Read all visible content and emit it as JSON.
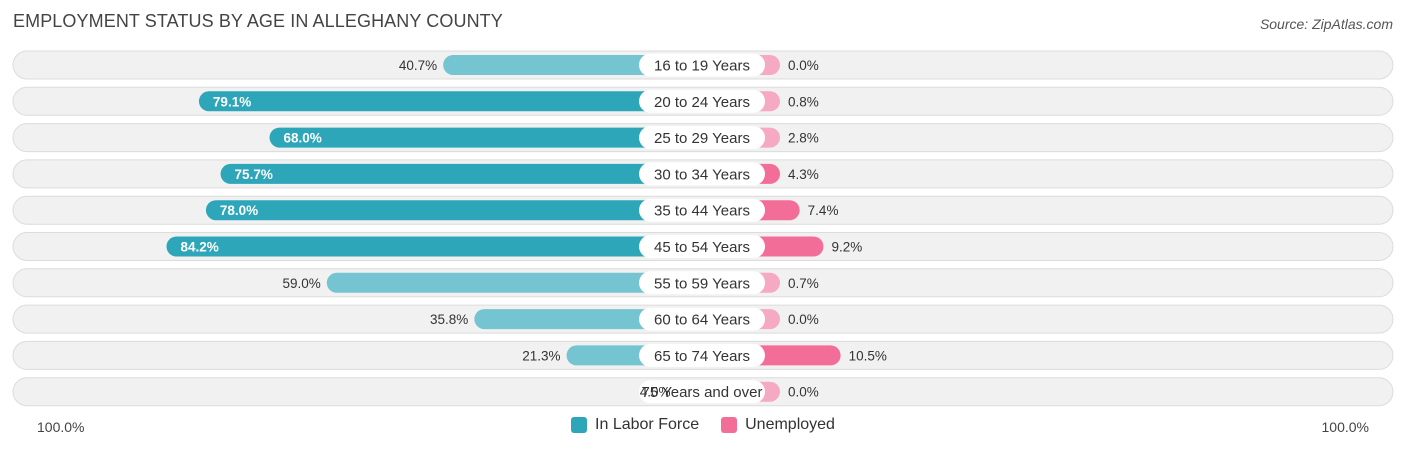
{
  "header": {
    "title": "EMPLOYMENT STATUS BY AGE IN ALLEGHANY COUNTY",
    "source": "Source: ZipAtlas.com"
  },
  "colors": {
    "labor_dark": "#2ea6b9",
    "labor_light": "#74c5d1",
    "unemp_dark": "#f26e98",
    "unemp_light": "#f6a9c3",
    "row_bg": "#f1f1f1",
    "row_border": "#dcdcdc"
  },
  "chart_data": {
    "type": "bar",
    "orientation": "horizontal-diverging",
    "title": "EMPLOYMENT STATUS BY AGE IN ALLEGHANY COUNTY",
    "categories": [
      "16 to 19 Years",
      "20 to 24 Years",
      "25 to 29 Years",
      "30 to 34 Years",
      "35 to 44 Years",
      "45 to 54 Years",
      "55 to 59 Years",
      "60 to 64 Years",
      "65 to 74 Years",
      "75 Years and over"
    ],
    "series": [
      {
        "name": "In Labor Force",
        "values": [
          40.7,
          79.1,
          68.0,
          75.7,
          78.0,
          84.2,
          59.0,
          35.8,
          21.3,
          4.0
        ],
        "labels": [
          "40.7%",
          "79.1%",
          "68.0%",
          "75.7%",
          "78.0%",
          "84.2%",
          "59.0%",
          "35.8%",
          "21.3%",
          "4.0%"
        ]
      },
      {
        "name": "Unemployed",
        "values": [
          0.0,
          0.8,
          2.8,
          4.3,
          7.4,
          9.2,
          0.7,
          0.0,
          10.5,
          0.0
        ],
        "labels": [
          "0.0%",
          "0.8%",
          "2.8%",
          "4.3%",
          "7.4%",
          "9.2%",
          "0.7%",
          "0.0%",
          "10.5%",
          "0.0%"
        ]
      }
    ],
    "axis": {
      "left_label": "100.0%",
      "right_label": "100.0%",
      "range": [
        0,
        100
      ]
    },
    "legend": [
      "In Labor Force",
      "Unemployed"
    ],
    "legend_position": "bottom-center"
  }
}
